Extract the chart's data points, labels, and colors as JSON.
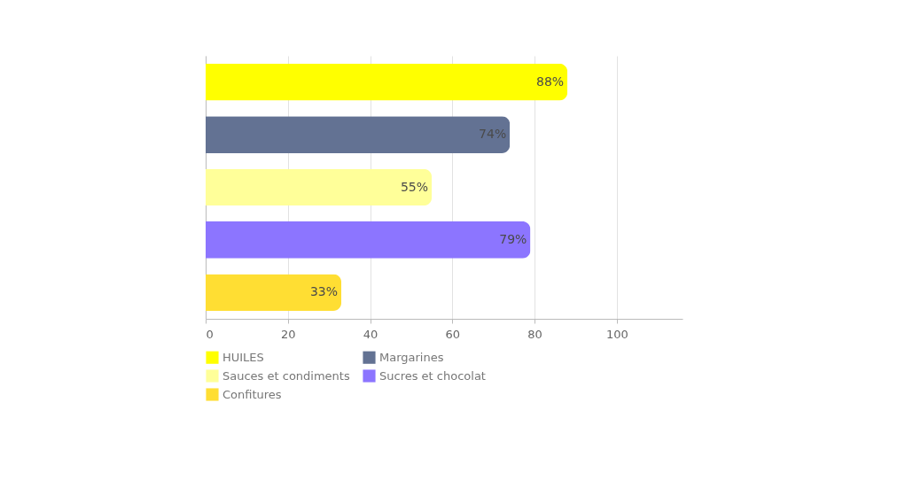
{
  "chart_data": {
    "type": "bar",
    "orientation": "horizontal",
    "categories": [
      null,
      null,
      null,
      null,
      null
    ],
    "series": [
      {
        "name": "HUILES",
        "color": "#ffff00",
        "values": [
          88,
          null,
          null,
          null,
          null
        ],
        "value_labels": [
          "88%",
          null,
          null,
          null,
          null
        ]
      },
      {
        "name": "Margarines",
        "color": "#637293",
        "values": [
          null,
          74,
          null,
          null,
          null
        ],
        "value_labels": [
          null,
          "74%",
          null,
          null,
          null
        ]
      },
      {
        "name": "Sauces et condiments",
        "color": "#ffff99",
        "values": [
          null,
          null,
          55,
          null,
          null
        ],
        "value_labels": [
          null,
          null,
          "55%",
          null,
          null
        ]
      },
      {
        "name": "Sucres et chocolat",
        "color": "#8c75ff",
        "values": [
          null,
          null,
          null,
          79,
          null
        ],
        "value_labels": [
          null,
          null,
          null,
          "79%",
          null
        ]
      },
      {
        "name": "Confitures",
        "color": "#ffde33",
        "values": [
          null,
          null,
          null,
          null,
          33
        ],
        "value_labels": [
          null,
          null,
          null,
          null,
          "33%"
        ]
      }
    ],
    "xlim": [
      0,
      116
    ],
    "xticks": [
      0,
      20,
      40,
      60,
      80,
      100
    ],
    "grid": "x",
    "legend": "bottom",
    "tick_labels": "x"
  }
}
